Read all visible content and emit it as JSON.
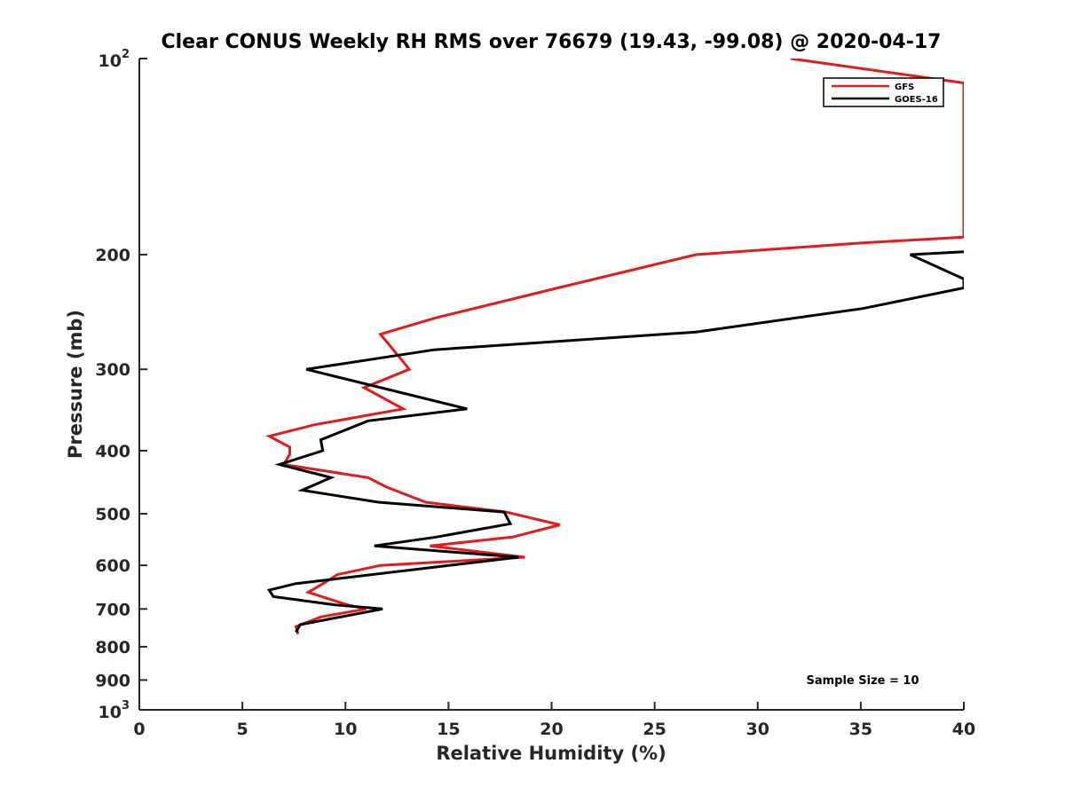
{
  "chart_data": {
    "type": "line",
    "title": "Clear CONUS Weekly RH RMS over 76679 (19.43, -99.08) @ 2020-04-17",
    "xlabel": "Relative Humidity (%)",
    "ylabel": "Pressure (mb)",
    "xlim": [
      0,
      40
    ],
    "ylim": [
      100,
      1000
    ],
    "y_scale": "log",
    "y_reversed": true,
    "grid": false,
    "legend_position": "top-right",
    "x_ticks": [
      0,
      5,
      10,
      15,
      20,
      25,
      30,
      35,
      40
    ],
    "x_tick_labels": [
      "0",
      "5",
      "10",
      "15",
      "20",
      "25",
      "30",
      "35",
      "40"
    ],
    "y_ticks": [
      {
        "value": 100,
        "base": "10",
        "exp": "2"
      },
      {
        "value": 200,
        "label": "200"
      },
      {
        "value": 300,
        "label": "300"
      },
      {
        "value": 400,
        "label": "400"
      },
      {
        "value": 500,
        "label": "500"
      },
      {
        "value": 600,
        "label": "600"
      },
      {
        "value": 700,
        "label": "700"
      },
      {
        "value": 800,
        "label": "800"
      },
      {
        "value": 900,
        "label": "900"
      },
      {
        "value": 1000,
        "base": "10",
        "exp": "3"
      }
    ],
    "annotation": "Sample Size = 10",
    "series": [
      {
        "name": "GFS",
        "color": "#e41a1c",
        "points": [
          {
            "x": 31.6,
            "y": 100
          },
          {
            "x": 40.0,
            "y": 109
          },
          {
            "x": 40.0,
            "y": 188
          },
          {
            "x": 35.0,
            "y": 192
          },
          {
            "x": 27.0,
            "y": 200
          },
          {
            "x": 20.3,
            "y": 225
          },
          {
            "x": 14.4,
            "y": 250
          },
          {
            "x": 11.7,
            "y": 265
          },
          {
            "x": 13.1,
            "y": 300
          },
          {
            "x": 10.9,
            "y": 320
          },
          {
            "x": 12.8,
            "y": 345
          },
          {
            "x": 8.5,
            "y": 365
          },
          {
            "x": 6.3,
            "y": 380
          },
          {
            "x": 7.3,
            "y": 395
          },
          {
            "x": 7.3,
            "y": 405
          },
          {
            "x": 7.0,
            "y": 420
          },
          {
            "x": 11.1,
            "y": 440
          },
          {
            "x": 12.0,
            "y": 455
          },
          {
            "x": 13.9,
            "y": 480
          },
          {
            "x": 17.8,
            "y": 497
          },
          {
            "x": 20.4,
            "y": 520
          },
          {
            "x": 18.1,
            "y": 543
          },
          {
            "x": 14.1,
            "y": 560
          },
          {
            "x": 18.7,
            "y": 583
          },
          {
            "x": 11.7,
            "y": 600
          },
          {
            "x": 9.6,
            "y": 620
          },
          {
            "x": 9.1,
            "y": 635
          },
          {
            "x": 8.2,
            "y": 660
          },
          {
            "x": 10.1,
            "y": 690
          },
          {
            "x": 11.0,
            "y": 700
          },
          {
            "x": 8.8,
            "y": 720
          },
          {
            "x": 7.6,
            "y": 745
          },
          {
            "x": 7.7,
            "y": 765
          }
        ]
      },
      {
        "name": "GOES-16",
        "color": "#000000",
        "points": [
          {
            "x": 40.0,
            "y": 198
          },
          {
            "x": 37.4,
            "y": 200
          },
          {
            "x": 40.0,
            "y": 218
          },
          {
            "x": 40.0,
            "y": 225
          },
          {
            "x": 35.1,
            "y": 242
          },
          {
            "x": 27.0,
            "y": 263
          },
          {
            "x": 14.3,
            "y": 280
          },
          {
            "x": 8.1,
            "y": 300
          },
          {
            "x": 15.9,
            "y": 345
          },
          {
            "x": 11.1,
            "y": 360
          },
          {
            "x": 8.8,
            "y": 385
          },
          {
            "x": 8.9,
            "y": 400
          },
          {
            "x": 6.8,
            "y": 420
          },
          {
            "x": 9.3,
            "y": 440
          },
          {
            "x": 7.9,
            "y": 460
          },
          {
            "x": 11.6,
            "y": 480
          },
          {
            "x": 17.7,
            "y": 497
          },
          {
            "x": 18.0,
            "y": 518
          },
          {
            "x": 14.4,
            "y": 543
          },
          {
            "x": 11.4,
            "y": 560
          },
          {
            "x": 18.4,
            "y": 583
          },
          {
            "x": 7.6,
            "y": 640
          },
          {
            "x": 6.3,
            "y": 655
          },
          {
            "x": 6.5,
            "y": 670
          },
          {
            "x": 9.5,
            "y": 690
          },
          {
            "x": 11.8,
            "y": 700
          },
          {
            "x": 7.8,
            "y": 740
          },
          {
            "x": 7.6,
            "y": 760
          }
        ]
      }
    ]
  }
}
